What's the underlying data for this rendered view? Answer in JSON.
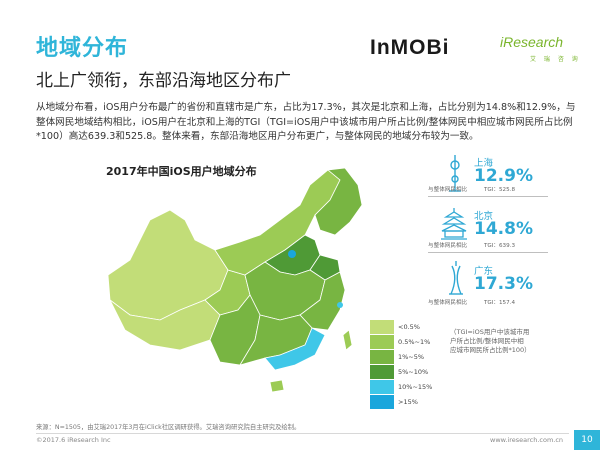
{
  "header": {
    "title": "地域分布",
    "subtitle": "北上广领衔，东部沿海地区分布广",
    "body": "从地域分布看，iOS用户分布最广的省份和直辖市是广东，占比为17.3%，其次是北京和上海，占比分别为14.8%和12.9%，与整体网民地域结构相比，iOS用户在北京和上海的TGI（TGI=iOS用户中该城市用户所占比例/整体网民中相应城市网民所占比例*100）高达639.3和525.8。整体来看，东部沿海地区用户分布更广，与整体网民的地域分布较为一致。",
    "logo_inmobi": "InMOBi",
    "logo_iresearch": "iResearch",
    "logo_iresearch_sub": "艾 瑞 咨 询"
  },
  "chart_data": {
    "type": "choropleth",
    "title": "2017年中国iOS用户地域分布",
    "highlights": [
      {
        "city": "上海",
        "value": "12.9%",
        "compare_label": "与整体网民相比",
        "tgi_label": "TGI：525.8",
        "tgi": 525.8
      },
      {
        "city": "北京",
        "value": "14.8%",
        "compare_label": "与整体网民相比",
        "tgi_label": "TGI：639.3",
        "tgi": 639.3
      },
      {
        "city": "广东",
        "value": "17.3%",
        "compare_label": "与整体网民相比",
        "tgi_label": "TGI：157.4",
        "tgi": 157.4
      }
    ],
    "legend": [
      {
        "label": "<0.5%",
        "color": "#c2dd78"
      },
      {
        "label": "0.5%~1%",
        "color": "#9ccb55"
      },
      {
        "label": "1%~5%",
        "color": "#78b542"
      },
      {
        "label": "5%~10%",
        "color": "#4f9a36"
      },
      {
        "label": "10%~15%",
        "color": "#3fc7e8"
      },
      {
        "label": ">15%",
        "color": "#1aa6dc"
      }
    ],
    "legend_note": "（TGI=iOS用户中该城市用户所占比例/整体网民中相应城市网民所占比例*100）"
  },
  "footer": {
    "source": "来源：N=1505，由艾瑞2017年3月在iClick社区调研获得。艾瑞咨询研究院自主研究及绘制。",
    "copyright": "©2017.6 iResearch Inc",
    "website": "www.iresearch.com.cn",
    "page": "10"
  }
}
